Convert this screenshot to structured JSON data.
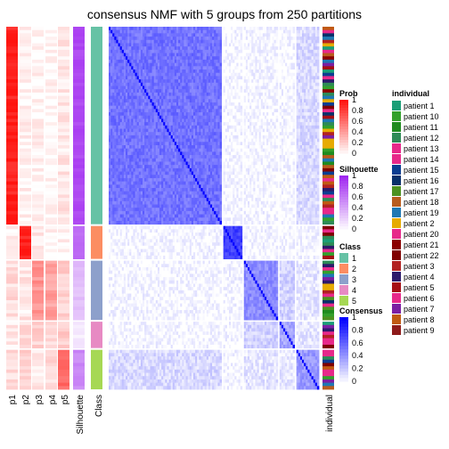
{
  "title": "consensus NMF with 5 groups from 250 partitions",
  "chart_data": {
    "type": "heatmap",
    "title": "consensus NMF with 5 groups from 250 partitions",
    "column_labels": [
      "p1",
      "p2",
      "p3",
      "p4",
      "p5",
      "Silhouette",
      "Class",
      "individual"
    ],
    "class_sizes": [
      60,
      10,
      18,
      8,
      12
    ],
    "class_colors": [
      "#66C2A5",
      "#FC8D62",
      "#8DA0CB",
      "#E78AC3",
      "#A6D854"
    ],
    "prob_profile": {
      "1": [
        0.95,
        0.05,
        0.05,
        0.03,
        0.1
      ],
      "2": [
        0.05,
        0.95,
        0.1,
        0.05,
        0.05
      ],
      "3": [
        0.15,
        0.1,
        0.45,
        0.4,
        0.2
      ],
      "4": [
        0.1,
        0.15,
        0.2,
        0.15,
        0.2
      ],
      "5": [
        0.15,
        0.2,
        0.1,
        0.15,
        0.65
      ]
    },
    "silhouette_profile": {
      "1": 0.85,
      "2": 0.7,
      "3": 0.3,
      "4": 0.1,
      "5": 0.55
    },
    "legends": {
      "prob": {
        "title": "Prob",
        "ticks": [
          "1",
          "0.8",
          "0.6",
          "0.4",
          "0.2",
          "0"
        ]
      },
      "silhouette": {
        "title": "Silhouette",
        "ticks": [
          "1",
          "0.8",
          "0.6",
          "0.4",
          "0.2",
          "0"
        ]
      },
      "class": {
        "title": "Class",
        "labels": [
          "1",
          "2",
          "3",
          "4",
          "5"
        ]
      },
      "consensus": {
        "title": "Consensus",
        "ticks": [
          "1",
          "0.8",
          "0.6",
          "0.4",
          "0.2",
          "0"
        ]
      },
      "individual": {
        "title": "individual",
        "labels": [
          "patient 1",
          "patient 10",
          "patient 11",
          "patient 12",
          "patient 13",
          "patient 14",
          "patient 15",
          "patient 16",
          "patient 17",
          "patient 18",
          "patient 19",
          "patient 2",
          "patient 20",
          "patient 21",
          "patient 22",
          "patient 3",
          "patient 4",
          "patient 5",
          "patient 6",
          "patient 7",
          "patient 8",
          "patient 9"
        ],
        "colors": [
          "#1B9E77",
          "#33A02C",
          "#1F8B1F",
          "#2E8B57",
          "#E7298A",
          "#E7298A",
          "#0B3D91",
          "#08306B",
          "#4D9221",
          "#B85C1E",
          "#1F78B4",
          "#E6AB02",
          "#E7298A",
          "#8B0000",
          "#800000",
          "#B22222",
          "#2C1A6B",
          "#A50F15",
          "#E7298A",
          "#7B1FA2",
          "#C05A12",
          "#8E1B1B"
        ]
      }
    }
  }
}
